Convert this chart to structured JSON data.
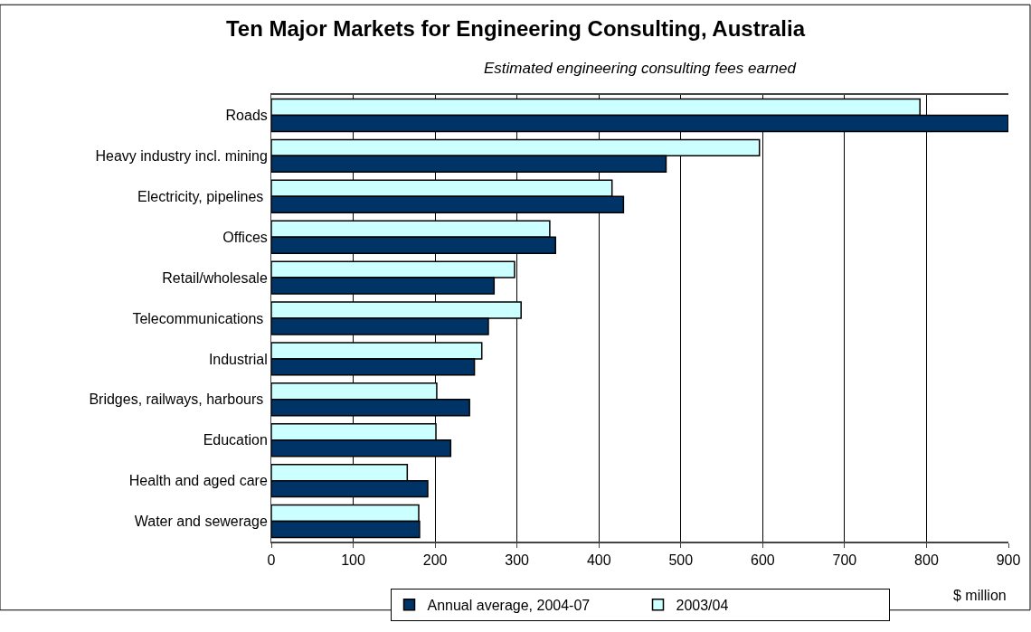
{
  "chart_data": {
    "type": "bar",
    "orientation": "horizontal",
    "title": "Ten Major Markets for Engineering Consulting, Australia",
    "subtitle": "Estimated engineering consulting fees earned",
    "xlabel": "$ million",
    "categories": [
      "Roads",
      "Heavy industry incl. mining",
      "Electricity, pipelines ",
      "Offices",
      "Retail/wholesale",
      "Telecommunications ",
      "Industrial",
      "Bridges, railways, harbours ",
      "Education",
      "Health and aged care",
      "Water and sewerage"
    ],
    "series": [
      {
        "name": "Annual average, 2004-07",
        "color": "#003366",
        "values": [
          900,
          482,
          430,
          347,
          272,
          265,
          248,
          242,
          219,
          191,
          181
        ]
      },
      {
        "name": "2003/04",
        "color": "#ccffff",
        "values": [
          792,
          596,
          416,
          340,
          297,
          305,
          257,
          202,
          201,
          166,
          180
        ]
      }
    ],
    "xlim": [
      0,
      900
    ],
    "xticks": [
      0,
      100,
      200,
      300,
      400,
      500,
      600,
      700,
      800,
      900
    ],
    "grid": "x",
    "legend": "bottom"
  }
}
